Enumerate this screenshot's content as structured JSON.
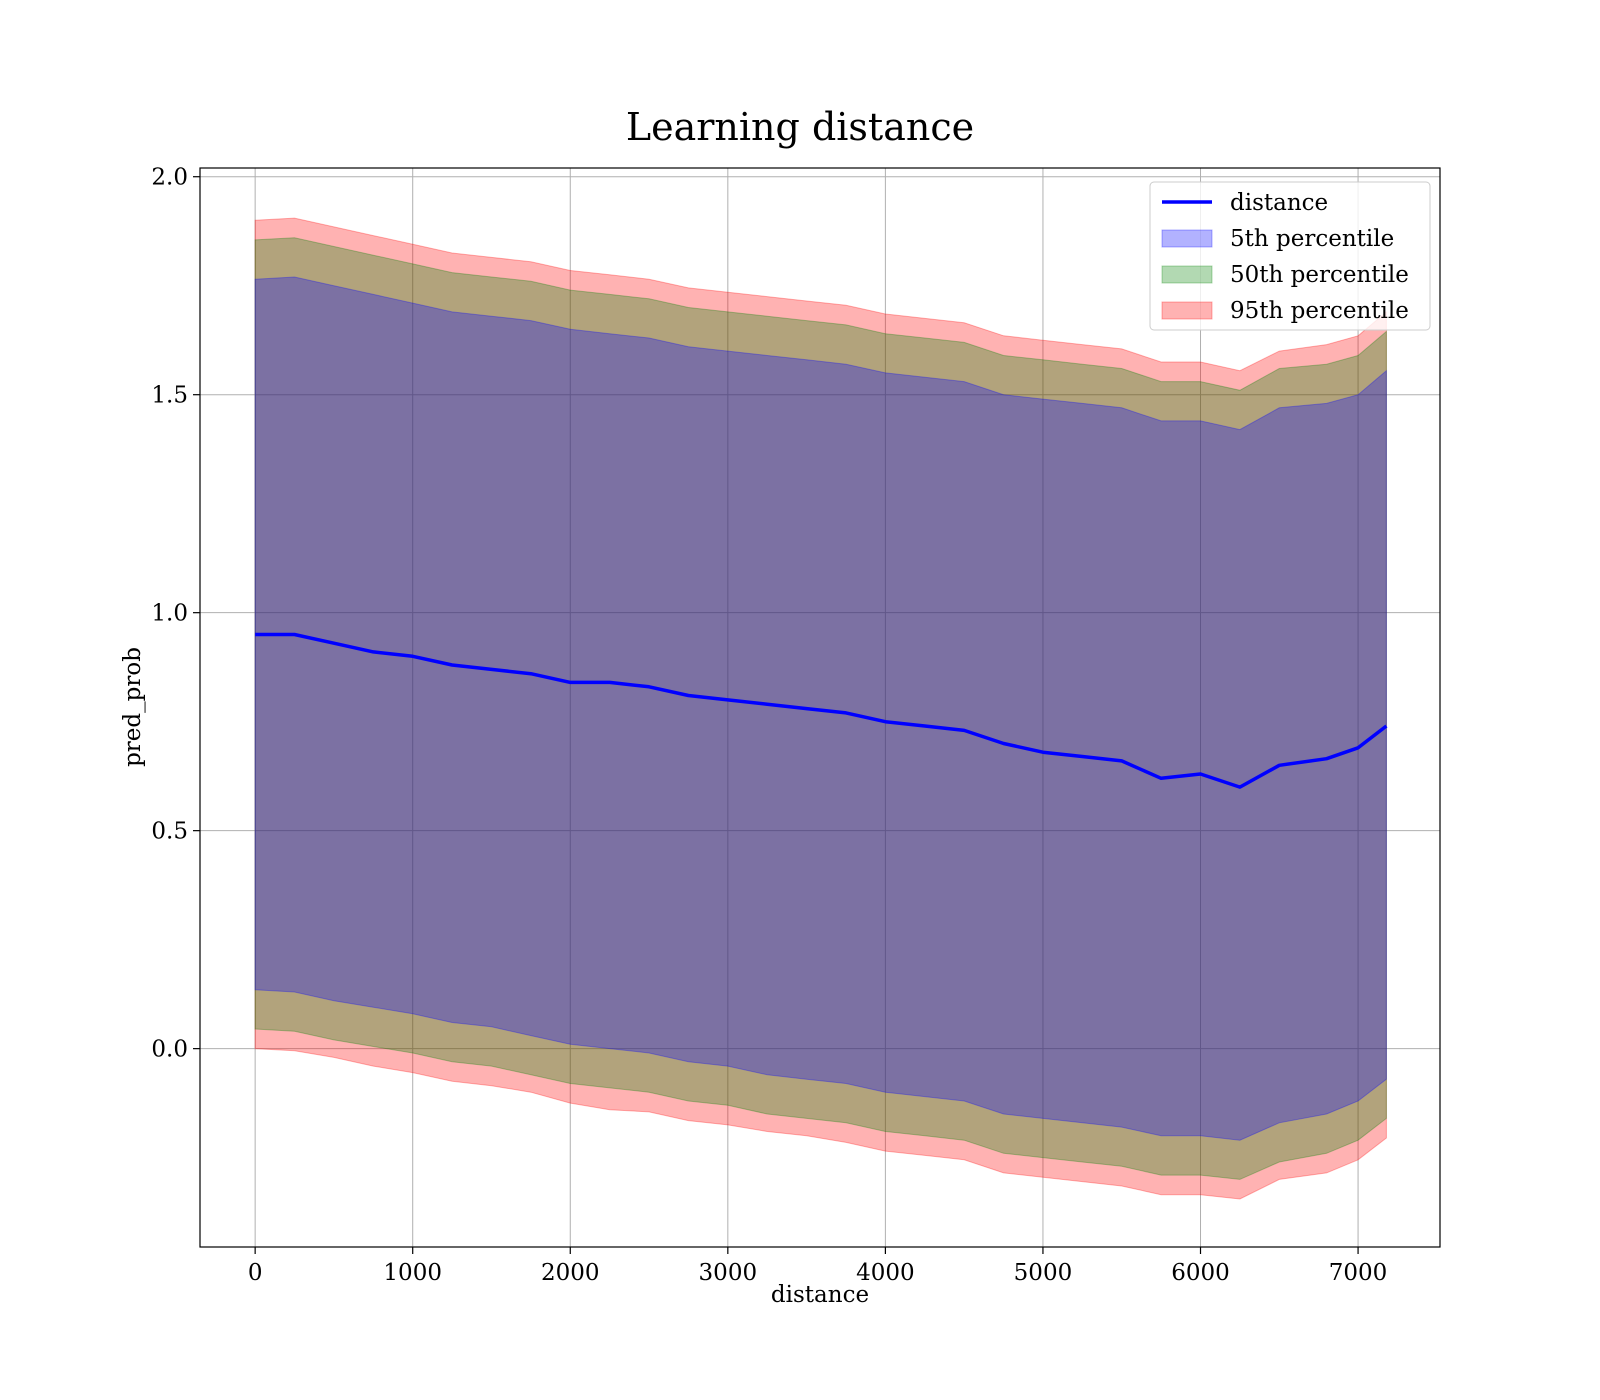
{
  "chart_data": {
    "type": "line",
    "title": "Learning distance",
    "xlabel": "distance",
    "ylabel": "pred_prob",
    "xlim": [
      -350,
      7520
    ],
    "ylim": [
      -0.455,
      2.02
    ],
    "xticks": [
      0,
      1000,
      2000,
      3000,
      4000,
      5000,
      6000,
      7000
    ],
    "yticks": [
      0.0,
      0.5,
      1.0,
      1.5,
      2.0
    ],
    "xtick_labels": [
      "0",
      "1000",
      "2000",
      "3000",
      "4000",
      "5000",
      "6000",
      "7000"
    ],
    "ytick_labels": [
      "0.0",
      "0.5",
      "1.0",
      "1.5",
      "2.0"
    ],
    "grid": true,
    "legend_position": "top-right",
    "x": [
      0,
      250,
      500,
      750,
      1000,
      1250,
      1500,
      1750,
      2000,
      2250,
      2500,
      2750,
      3000,
      3250,
      3500,
      3750,
      4000,
      4250,
      4500,
      4750,
      5000,
      5250,
      5500,
      5750,
      6000,
      6250,
      6500,
      6800,
      7000,
      7180
    ],
    "series": [
      {
        "name": "distance",
        "kind": "line",
        "color": "#0000ff",
        "values": [
          0.95,
          0.95,
          0.93,
          0.91,
          0.9,
          0.88,
          0.87,
          0.86,
          0.84,
          0.84,
          0.83,
          0.81,
          0.8,
          0.79,
          0.78,
          0.77,
          0.75,
          0.74,
          0.73,
          0.7,
          0.68,
          0.67,
          0.66,
          0.62,
          0.63,
          0.6,
          0.65,
          0.665,
          0.69,
          0.74
        ]
      },
      {
        "name": "5th percentile",
        "kind": "band",
        "color": "#0000ff",
        "lower": [
          0.135,
          0.13,
          0.11,
          0.095,
          0.08,
          0.06,
          0.05,
          0.03,
          0.01,
          0.0,
          -0.01,
          -0.03,
          -0.04,
          -0.06,
          -0.07,
          -0.08,
          -0.1,
          -0.11,
          -0.12,
          -0.15,
          -0.16,
          -0.17,
          -0.18,
          -0.2,
          -0.2,
          -0.21,
          -0.17,
          -0.15,
          -0.12,
          -0.07
        ],
        "upper": [
          1.765,
          1.77,
          1.75,
          1.73,
          1.71,
          1.69,
          1.68,
          1.67,
          1.65,
          1.64,
          1.63,
          1.61,
          1.6,
          1.59,
          1.58,
          1.57,
          1.55,
          1.54,
          1.53,
          1.5,
          1.49,
          1.48,
          1.47,
          1.44,
          1.44,
          1.42,
          1.47,
          1.48,
          1.5,
          1.555
        ]
      },
      {
        "name": "50th percentile",
        "kind": "band",
        "color": "#008000",
        "lower": [
          0.045,
          0.04,
          0.02,
          0.005,
          -0.01,
          -0.03,
          -0.04,
          -0.06,
          -0.08,
          -0.09,
          -0.1,
          -0.12,
          -0.13,
          -0.15,
          -0.16,
          -0.17,
          -0.19,
          -0.2,
          -0.21,
          -0.24,
          -0.25,
          -0.26,
          -0.27,
          -0.29,
          -0.29,
          -0.3,
          -0.26,
          -0.24,
          -0.21,
          -0.16
        ],
        "upper": [
          1.855,
          1.86,
          1.84,
          1.82,
          1.8,
          1.78,
          1.77,
          1.76,
          1.74,
          1.73,
          1.72,
          1.7,
          1.69,
          1.68,
          1.67,
          1.66,
          1.64,
          1.63,
          1.62,
          1.59,
          1.58,
          1.57,
          1.56,
          1.53,
          1.53,
          1.51,
          1.56,
          1.57,
          1.59,
          1.645
        ]
      },
      {
        "name": "95th percentile",
        "kind": "band",
        "color": "#ff0000",
        "lower": [
          0.0,
          -0.005,
          -0.02,
          -0.04,
          -0.055,
          -0.075,
          -0.085,
          -0.1,
          -0.125,
          -0.14,
          -0.145,
          -0.165,
          -0.175,
          -0.19,
          -0.2,
          -0.215,
          -0.235,
          -0.245,
          -0.255,
          -0.285,
          -0.295,
          -0.305,
          -0.315,
          -0.335,
          -0.335,
          -0.345,
          -0.3,
          -0.285,
          -0.255,
          -0.205
        ],
        "upper": [
          1.9,
          1.905,
          1.885,
          1.865,
          1.845,
          1.825,
          1.815,
          1.805,
          1.785,
          1.775,
          1.765,
          1.745,
          1.735,
          1.725,
          1.715,
          1.705,
          1.685,
          1.675,
          1.665,
          1.635,
          1.625,
          1.615,
          1.605,
          1.575,
          1.575,
          1.555,
          1.6,
          1.615,
          1.635,
          1.69
        ]
      }
    ]
  }
}
